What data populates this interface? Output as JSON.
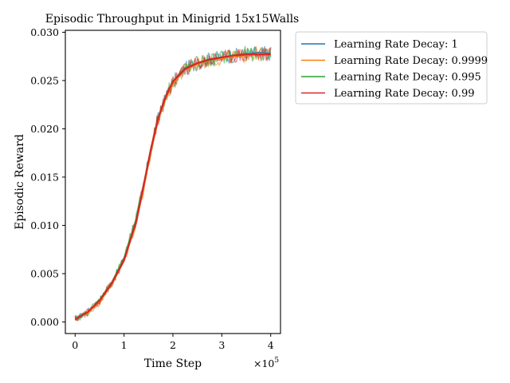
{
  "chart_data": {
    "type": "line",
    "title": "Episodic Throughput in Minigrid 15x15Walls",
    "xlabel": "Time Step",
    "ylabel": "Episodic Reward",
    "x_multiplier": "×10",
    "x_multiplier_exp": "5",
    "xlim": [
      -0.2,
      4.2
    ],
    "ylim": [
      -0.0012,
      0.0302
    ],
    "xticks": [
      0,
      1,
      2,
      3,
      4
    ],
    "xtick_labels": [
      "0",
      "1",
      "2",
      "3",
      "4"
    ],
    "yticks": [
      0.0,
      0.005,
      0.01,
      0.015,
      0.02,
      0.025,
      0.03
    ],
    "ytick_labels": [
      "0.000",
      "0.005",
      "0.010",
      "0.015",
      "0.020",
      "0.025",
      "0.030"
    ],
    "grid": false,
    "legend_position": "outside-right",
    "smoothed_x": [
      0,
      0.25,
      0.5,
      0.75,
      1.0,
      1.25,
      1.4,
      1.55,
      1.7,
      1.85,
      2.0,
      2.25,
      2.5,
      2.75,
      3.0,
      3.25,
      3.5,
      3.75,
      4.0
    ],
    "series": [
      {
        "name": "Learning Rate Decay: 1",
        "color": "#1f77b4",
        "values": [
          0.0003,
          0.001,
          0.0022,
          0.004,
          0.0065,
          0.0105,
          0.014,
          0.0178,
          0.021,
          0.0232,
          0.0248,
          0.0262,
          0.0268,
          0.0272,
          0.0274,
          0.0276,
          0.0277,
          0.0279,
          0.0278
        ]
      },
      {
        "name": "Learning Rate Decay: 0.9999",
        "color": "#ff7f0e",
        "values": [
          0.0003,
          0.0009,
          0.0021,
          0.0039,
          0.0063,
          0.0103,
          0.0138,
          0.0176,
          0.0209,
          0.0231,
          0.0247,
          0.0261,
          0.0267,
          0.0271,
          0.0273,
          0.0275,
          0.0276,
          0.0278,
          0.0277
        ]
      },
      {
        "name": "Learning Rate Decay: 0.995",
        "color": "#2ca02c",
        "values": [
          0.0002,
          0.001,
          0.0023,
          0.0041,
          0.0066,
          0.0107,
          0.0142,
          0.018,
          0.0212,
          0.0234,
          0.0249,
          0.0263,
          0.0268,
          0.0271,
          0.0274,
          0.0276,
          0.0278,
          0.0277,
          0.0277
        ]
      },
      {
        "name": "Learning Rate Decay: 0.99",
        "color": "#d62728",
        "values": [
          0.0003,
          0.001,
          0.0022,
          0.004,
          0.0064,
          0.0104,
          0.0141,
          0.0179,
          0.0211,
          0.0233,
          0.0249,
          0.0262,
          0.0268,
          0.0272,
          0.0274,
          0.0276,
          0.0277,
          0.0277,
          0.0277
        ]
      }
    ]
  }
}
